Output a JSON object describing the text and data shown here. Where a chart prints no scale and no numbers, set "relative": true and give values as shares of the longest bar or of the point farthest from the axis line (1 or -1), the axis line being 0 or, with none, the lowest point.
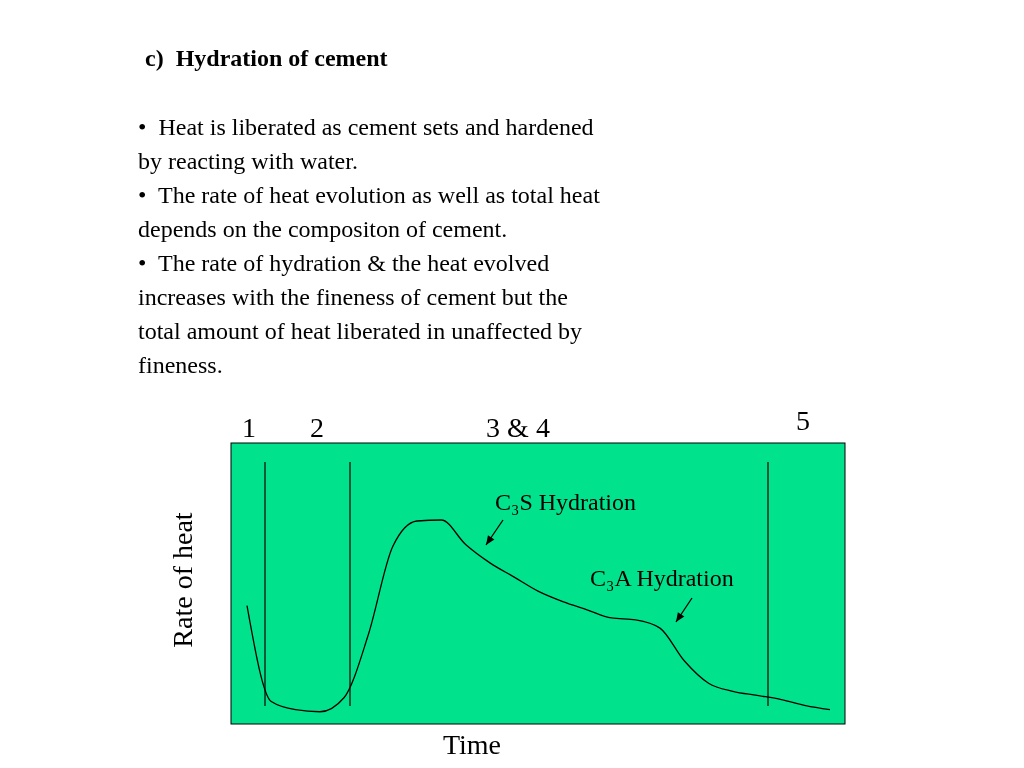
{
  "chart_data": {
    "type": "line",
    "title": "c)  Hydration of cement",
    "xlabel": "Time",
    "ylabel": "Rate of heat",
    "relative": true,
    "annotations": [
      "•  Heat is liberated as cement sets and hardened by reacting with water.",
      "•  The rate of heat evolution as well as total heat depends on the compositon of cement.",
      "•  The rate of hydration & the heat evolved increases with the fineness of cement but the total amount of heat liberated in unaffected by fineness.",
      "1",
      "2",
      "3 & 4",
      "5",
      "C₃S Hydration",
      "C₃A Hydration"
    ],
    "categories": [
      null,
      null,
      null,
      null,
      null,
      null,
      null,
      null,
      null,
      null,
      null,
      null,
      null,
      null,
      null,
      null,
      null,
      null,
      null,
      null,
      null,
      null,
      null,
      null,
      null
    ],
    "series": [
      {
        "color": "#000000",
        "values": [
          0.58,
          0.11,
          0.07,
          0.06,
          0.13,
          0.44,
          0.87,
          0.995,
          1,
          0.88,
          0.79,
          0.72,
          0.65,
          0.6,
          0.56,
          0.52,
          0.51,
          0.47,
          0.31,
          0.2,
          0.16,
          0.14,
          0.12,
          0.09,
          0.07
        ]
      }
    ]
  }
}
